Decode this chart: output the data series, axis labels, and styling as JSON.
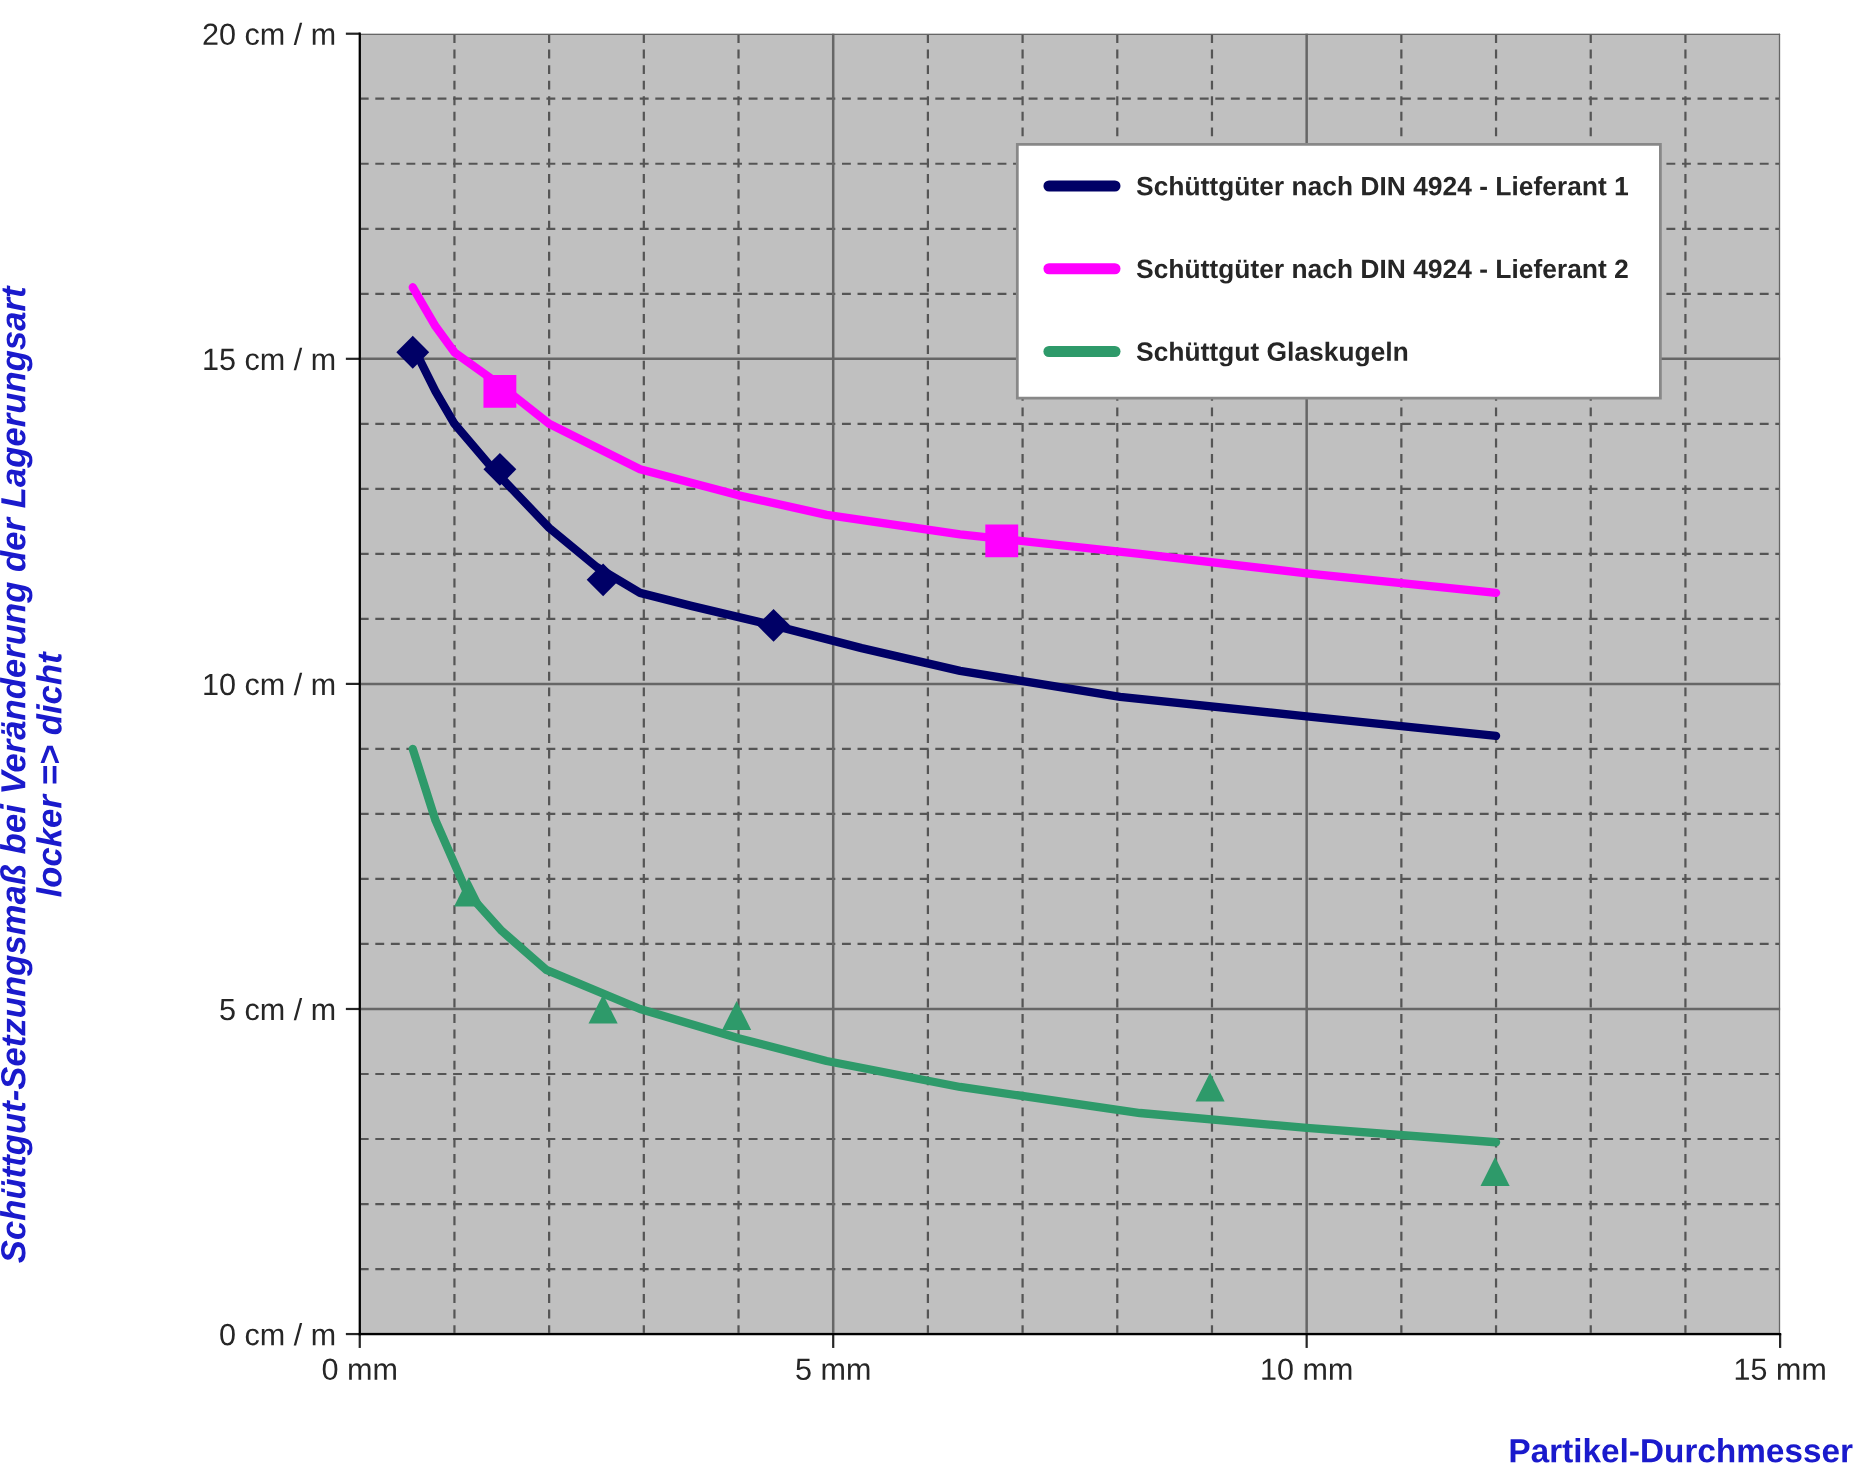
{
  "chart_data": {
    "type": "line",
    "xlabel": "Partikel-Durchmesser",
    "ylabel": "Schüttgut-Setzungsmaß bei Veränderung der Lagerungsart\nlocker => dicht",
    "xlim": [
      0,
      15
    ],
    "xticks": [
      {
        "value": 0,
        "label": "0 mm"
      },
      {
        "value": 5,
        "label": "5 mm"
      },
      {
        "value": 10,
        "label": "10 mm"
      },
      {
        "value": 15,
        "label": "15 mm"
      }
    ],
    "ylim": [
      0,
      20
    ],
    "yticks": [
      {
        "value": 0,
        "label": "0 cm / m"
      },
      {
        "value": 5,
        "label": "5 cm / m"
      },
      {
        "value": 10,
        "label": "10 cm / m"
      },
      {
        "value": 15,
        "label": "15 cm / m"
      },
      {
        "value": 20,
        "label": "20 cm / m"
      }
    ],
    "grid": true,
    "legend": "top right",
    "series": [
      {
        "name": "Schüttgüter nach DIN 4924 - Lieferant 1",
        "marker": "none",
        "color": "#000066",
        "x": [
          0.56,
          0.8,
          1.0,
          1.41,
          2.0,
          2.5,
          2.96,
          3.5,
          4.37,
          5.3,
          6.34,
          8.03,
          10.0,
          12.0
        ],
        "values": [
          15.2,
          14.5,
          14.0,
          13.3,
          12.4,
          11.8,
          11.4,
          11.2,
          10.9,
          10.55,
          10.2,
          9.8,
          9.5,
          9.2
        ]
      },
      {
        "name": "Schüttgüter nach DIN 4924 - Lieferant 2",
        "marker": "none",
        "color": "#ff00ff",
        "x": [
          0.56,
          0.8,
          1.0,
          1.48,
          2.0,
          2.96,
          4.0,
          4.93,
          6.34,
          8.24,
          10.0,
          12.0
        ],
        "values": [
          16.1,
          15.5,
          15.1,
          14.6,
          14.0,
          13.3,
          12.9,
          12.6,
          12.3,
          12.0,
          11.7,
          11.4
        ]
      },
      {
        "name": "Schüttgut Glaskugeln",
        "marker": "none",
        "color": "#2e9a6a",
        "x": [
          0.56,
          0.8,
          1.13,
          1.5,
          1.97,
          2.96,
          4.0,
          4.93,
          6.34,
          8.24,
          10.0,
          12.0
        ],
        "values": [
          9.0,
          7.9,
          6.8,
          6.2,
          5.6,
          5.0,
          4.55,
          4.2,
          3.8,
          3.4,
          3.17,
          2.95
        ]
      },
      {
        "type": "scatter",
        "marker": "diamond",
        "color": "#000066",
        "x": [
          0.56,
          1.48,
          2.57,
          4.37
        ],
        "values": [
          15.1,
          13.3,
          11.6,
          10.9
        ]
      },
      {
        "type": "scatter",
        "marker": "square",
        "color": "#ff00ff",
        "x": [
          1.48,
          6.78
        ],
        "values": [
          14.5,
          12.2
        ]
      },
      {
        "type": "scatter",
        "marker": "triangle",
        "color": "#2e9a6a",
        "x": [
          1.15,
          2.57,
          3.98,
          8.98,
          11.99
        ],
        "values": [
          6.8,
          5.0,
          4.9,
          3.8,
          2.5
        ]
      }
    ]
  }
}
